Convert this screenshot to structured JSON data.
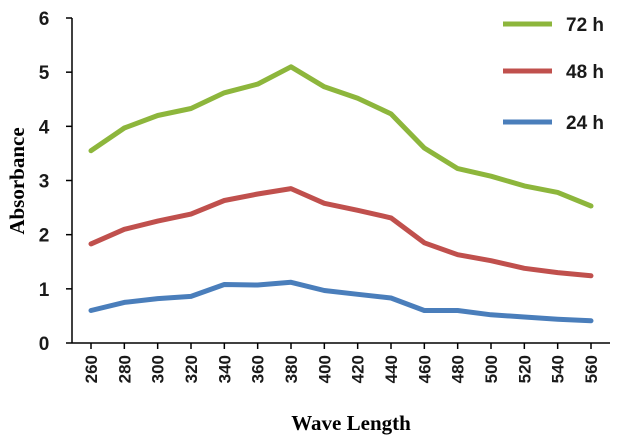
{
  "chart_data": {
    "type": "line",
    "xlabel": "Wave Length",
    "ylabel": "Absorbance",
    "x": [
      260,
      280,
      300,
      320,
      340,
      360,
      380,
      400,
      420,
      440,
      460,
      480,
      500,
      520,
      540,
      560
    ],
    "ylim": [
      0,
      6
    ],
    "yticks": [
      0,
      1,
      2,
      3,
      4,
      5,
      6
    ],
    "grid": false,
    "legend": "right",
    "series": [
      {
        "name": "72 h",
        "color": "#8DB63C",
        "values": [
          3.55,
          3.97,
          4.2,
          4.33,
          4.62,
          4.78,
          5.1,
          4.73,
          4.52,
          4.23,
          3.6,
          3.22,
          3.08,
          2.9,
          2.78,
          2.53
        ]
      },
      {
        "name": "48 h",
        "color": "#C0504D",
        "values": [
          1.83,
          2.1,
          2.25,
          2.38,
          2.63,
          2.75,
          2.85,
          2.58,
          2.45,
          2.31,
          1.85,
          1.63,
          1.52,
          1.38,
          1.3,
          1.24
        ]
      },
      {
        "name": "24 h",
        "color": "#4A7EBB",
        "values": [
          0.6,
          0.75,
          0.82,
          0.86,
          1.08,
          1.07,
          1.12,
          0.97,
          0.9,
          0.83,
          0.6,
          0.6,
          0.52,
          0.48,
          0.44,
          0.41
        ]
      }
    ]
  }
}
